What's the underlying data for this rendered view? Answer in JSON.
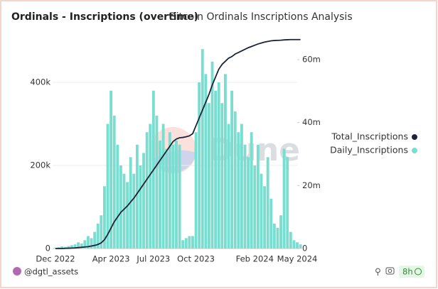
{
  "chart_data": {
    "type": "combo",
    "title": "Ordinals - Inscriptions (overtime)",
    "subtitle": "Bitcoin Ordinals Inscriptions Analysis",
    "categories": [
      "Dec 2022",
      null,
      null,
      null,
      null,
      null,
      null,
      null,
      null,
      null,
      null,
      null,
      null,
      null,
      null,
      null,
      null,
      "Apr 2023",
      null,
      null,
      null,
      null,
      null,
      null,
      null,
      null,
      null,
      null,
      null,
      null,
      "Jul 2023",
      null,
      null,
      null,
      null,
      null,
      null,
      null,
      null,
      null,
      null,
      null,
      null,
      "Oct 2023",
      null,
      null,
      null,
      null,
      null,
      null,
      null,
      null,
      null,
      null,
      null,
      null,
      null,
      null,
      null,
      null,
      null,
      "Feb 2024",
      null,
      null,
      null,
      null,
      null,
      null,
      null,
      null,
      null,
      null,
      null,
      null,
      "May 2024",
      null
    ],
    "series": [
      {
        "name": "Total_Inscriptions",
        "type": "line",
        "axis": "y2",
        "color": "#1b2436",
        "values": [
          0,
          0,
          0,
          50000,
          100000,
          150000,
          200000,
          300000,
          400000,
          500000,
          600000,
          800000,
          1000000,
          1300000,
          1800000,
          2800000,
          4500000,
          6500000,
          8500000,
          10000000,
          11500000,
          12500000,
          13500000,
          14800000,
          16000000,
          17500000,
          19000000,
          20500000,
          22000000,
          23500000,
          25000000,
          26500000,
          28000000,
          29500000,
          31000000,
          32500000,
          34000000,
          34800000,
          35200000,
          35300000,
          35500000,
          35800000,
          36500000,
          39000000,
          41500000,
          44000000,
          46500000,
          49000000,
          52000000,
          54500000,
          57000000,
          58500000,
          59500000,
          60500000,
          61000000,
          61800000,
          62300000,
          62800000,
          63300000,
          63800000,
          64200000,
          64600000,
          65000000,
          65300000,
          65600000,
          65800000,
          66000000,
          66100000,
          66150000,
          66200000,
          66300000,
          66350000,
          66400000,
          66400000,
          66400000,
          66400000
        ]
      },
      {
        "name": "Daily_Inscriptions",
        "type": "bar",
        "color": "#79ddd0",
        "values": [
          2000,
          3000,
          5000,
          4000,
          6000,
          8000,
          10000,
          15000,
          12000,
          20000,
          30000,
          25000,
          40000,
          60000,
          80000,
          150000,
          300000,
          380000,
          320000,
          250000,
          200000,
          180000,
          160000,
          220000,
          180000,
          250000,
          200000,
          230000,
          280000,
          300000,
          380000,
          320000,
          260000,
          300000,
          240000,
          280000,
          250000,
          260000,
          250000,
          20000,
          25000,
          30000,
          30000,
          280000,
          400000,
          480000,
          420000,
          350000,
          450000,
          380000,
          400000,
          350000,
          420000,
          300000,
          380000,
          330000,
          280000,
          300000,
          250000,
          220000,
          280000,
          200000,
          250000,
          180000,
          150000,
          220000,
          120000,
          60000,
          50000,
          80000,
          240000,
          220000,
          40000,
          20000,
          15000,
          10000
        ]
      }
    ],
    "ylim": [
      0,
      500000
    ],
    "yticks": [
      0,
      {
        "value": 200000,
        "label": "200k"
      },
      {
        "value": 400000,
        "label": "400k"
      }
    ],
    "y2lim": [
      0,
      66000000
    ],
    "y2ticks": [
      0,
      {
        "value": 20000000,
        "label": "20m"
      },
      {
        "value": 40000000,
        "label": "40m"
      },
      {
        "value": 60000000,
        "label": "60m"
      }
    ],
    "grid": true,
    "legend": "right"
  },
  "watermark": "Dune",
  "footer": {
    "author": "@dgtl_assets",
    "refresh": "8h"
  }
}
